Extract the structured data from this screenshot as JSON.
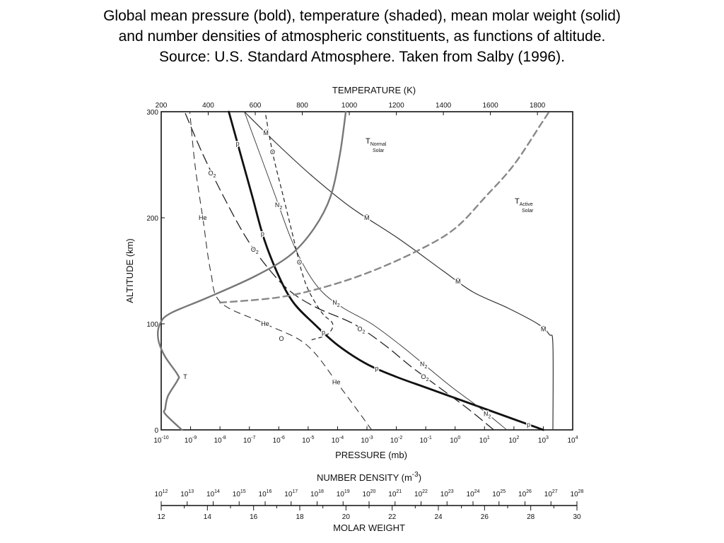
{
  "caption": {
    "line1": "Global mean pressure (bold), temperature (shaded), mean molar weight (solid)",
    "line2": "and number densities of atmospheric constituents, as functions of altitude.",
    "line3": "Source:  U.S. Standard Atmosphere.  Taken from Salby (1996)."
  },
  "chart_data": {
    "type": "line",
    "top_axis": {
      "title": "TEMPERATURE (K)",
      "ticks": [
        "200",
        "400",
        "600",
        "800",
        "1000",
        "1200",
        "1400",
        "1600",
        "1800"
      ],
      "range": [
        200,
        1950
      ]
    },
    "left_axis": {
      "title": "ALTITUDE (km)",
      "ticks": [
        "0",
        "100",
        "200",
        "300"
      ],
      "range": [
        0,
        300
      ]
    },
    "bottom_axis": {
      "title": "PRESSURE (mb)",
      "base": "10",
      "exponents": [
        "-10",
        "-9",
        "-8",
        "-7",
        "-6",
        "-5",
        "-4",
        "-3",
        "-2",
        "-1",
        "0",
        "1",
        "2",
        "3",
        "4"
      ]
    },
    "density_axis": {
      "title": "NUMBER DENSITY (m",
      "title_sup": "-3",
      "title_end": ")",
      "base": "10",
      "exponents": [
        "12",
        "13",
        "14",
        "15",
        "16",
        "17",
        "18",
        "19",
        "20",
        "21",
        "22",
        "23",
        "24",
        "25",
        "26",
        "27",
        "28"
      ]
    },
    "molar_axis": {
      "title": "MOLAR WEIGHT",
      "ticks": [
        "12",
        "14",
        "16",
        "18",
        "20",
        "22",
        "24",
        "26",
        "28",
        "30"
      ],
      "range": [
        12,
        30
      ]
    },
    "curve_labels": {
      "p": "p",
      "M": "M̄",
      "T": "T",
      "T_normal": "T",
      "T_normal_sub": "Normal",
      "T_normal_sub2": "Solar",
      "T_active": "T",
      "T_active_sub": "Active",
      "T_active_sub2": "Solar",
      "O": "O",
      "N2": "N",
      "O2": "O",
      "He": "He",
      "sub2": "2"
    },
    "series": [
      {
        "name": "p",
        "axis": "log10 pressure (mb)",
        "style": "bold",
        "points": [
          [
            3.0,
            0
          ],
          [
            2.0,
            10
          ],
          [
            1.0,
            20
          ],
          [
            0,
            30
          ],
          [
            -1,
            40
          ],
          [
            -2,
            50
          ],
          [
            -3,
            62
          ],
          [
            -4,
            80
          ],
          [
            -4.8,
            100
          ],
          [
            -5.5,
            120
          ],
          [
            -6,
            145
          ],
          [
            -6.5,
            180
          ],
          [
            -6.9,
            220
          ],
          [
            -7.3,
            260
          ],
          [
            -7.7,
            300
          ]
        ]
      },
      {
        "name": "M̄",
        "axis": "molar weight",
        "style": "solid",
        "points": [
          [
            28.96,
            0
          ],
          [
            28.96,
            80
          ],
          [
            28.8,
            90
          ],
          [
            28.3,
            100
          ],
          [
            27.0,
            115
          ],
          [
            25.5,
            130
          ],
          [
            24.2,
            150
          ],
          [
            22.3,
            180
          ],
          [
            20.2,
            210
          ],
          [
            18.5,
            240
          ],
          [
            17.0,
            270
          ],
          [
            15.6,
            300
          ]
        ]
      },
      {
        "name": "N2",
        "axis": "log10 number density (m^-3)",
        "style": "thin",
        "points": [
          [
            25.3,
            0
          ],
          [
            24.3,
            20
          ],
          [
            23.2,
            40
          ],
          [
            22.2,
            60
          ],
          [
            21.2,
            80
          ],
          [
            20.1,
            100
          ],
          [
            19.0,
            115
          ],
          [
            18.2,
            130
          ],
          [
            17.6,
            150
          ],
          [
            17.0,
            180
          ],
          [
            16.4,
            220
          ],
          [
            15.8,
            260
          ],
          [
            15.2,
            300
          ]
        ]
      },
      {
        "name": "O2",
        "axis": "log10 number density (m^-3)",
        "style": "long-dash",
        "points": [
          [
            24.8,
            0
          ],
          [
            23.8,
            20
          ],
          [
            22.7,
            40
          ],
          [
            21.6,
            60
          ],
          [
            20.6,
            80
          ],
          [
            19.4,
            100
          ],
          [
            18.0,
            115
          ],
          [
            17.0,
            130
          ],
          [
            16.2,
            150
          ],
          [
            15.3,
            180
          ],
          [
            14.4,
            220
          ],
          [
            13.6,
            260
          ],
          [
            12.9,
            300
          ]
        ]
      },
      {
        "name": "O",
        "axis": "log10 number density (m^-3)",
        "style": "short-dash",
        "points": [
          [
            17.8,
            85
          ],
          [
            18.4,
            90
          ],
          [
            18.6,
            100
          ],
          [
            18.2,
            110
          ],
          [
            17.7,
            130
          ],
          [
            17.4,
            150
          ],
          [
            17.1,
            180
          ],
          [
            16.7,
            220
          ],
          [
            16.3,
            260
          ],
          [
            16.0,
            300
          ]
        ]
      },
      {
        "name": "He",
        "axis": "log10 number density (m^-3)",
        "style": "dash",
        "points": [
          [
            20.1,
            0
          ],
          [
            18.9,
            40
          ],
          [
            17.6,
            80
          ],
          [
            16.0,
            100
          ],
          [
            14.3,
            120
          ],
          [
            13.9,
            150
          ],
          [
            13.6,
            200
          ],
          [
            13.3,
            250
          ],
          [
            13.1,
            300
          ]
        ]
      },
      {
        "name": "T",
        "axis": "temperature (K)",
        "style": "shaded",
        "points": [
          [
            288,
            0
          ],
          [
            217,
            15
          ],
          [
            217,
            20
          ],
          [
            229,
            32
          ],
          [
            270,
            47
          ],
          [
            270,
            52
          ],
          [
            214,
            70
          ],
          [
            187,
            86
          ],
          [
            195,
            100
          ],
          [
            240,
            110
          ],
          [
            400,
            125
          ],
          [
            600,
            145
          ],
          [
            750,
            165
          ],
          [
            850,
            190
          ],
          [
            920,
            220
          ],
          [
            960,
            260
          ],
          [
            985,
            300
          ]
        ]
      },
      {
        "name": "T Active Solar",
        "axis": "temperature (K)",
        "style": "shaded-dash",
        "points": [
          [
            450,
            120
          ],
          [
            700,
            125
          ],
          [
            900,
            135
          ],
          [
            1100,
            150
          ],
          [
            1300,
            170
          ],
          [
            1450,
            190
          ],
          [
            1580,
            220
          ],
          [
            1700,
            250
          ],
          [
            1820,
            290
          ],
          [
            1850,
            300
          ]
        ]
      }
    ]
  }
}
